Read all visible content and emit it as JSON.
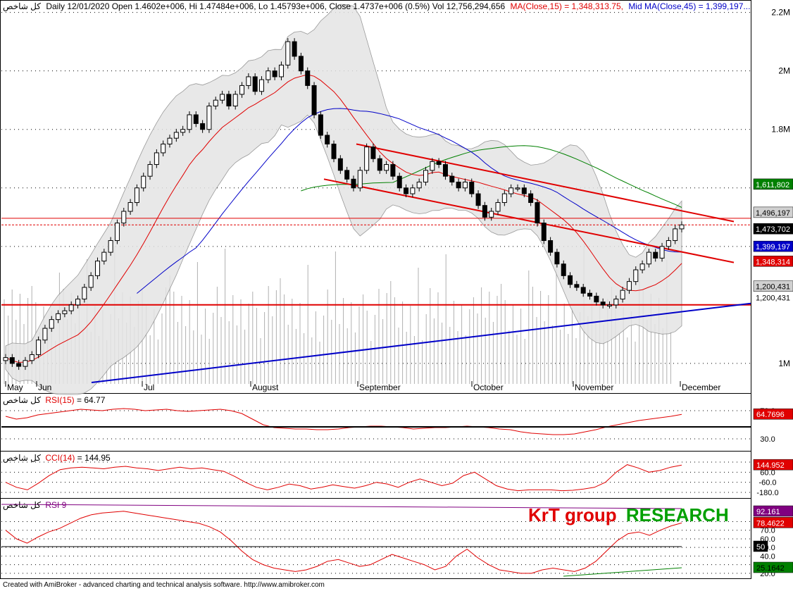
{
  "header": {
    "symbol": "كل شاخص",
    "title_line": "Daily 12/01/2020 Open 1.4602e+006, Hi 1.47484e+006, Lo 1.45793e+006, Close 1.4737e+006 (0.5%) Vol 12,756,294,656",
    "ma_label": "MA(Close,15) = 1,348,313.75,",
    "bb_label": "Mid MA(Close,45) = 1,399,197..."
  },
  "watermark": {
    "part1": "KrT group",
    "part2": "RESEARCH"
  },
  "footer": "Created with AmiBroker - advanced charting and technical analysis software. http://www.amibroker.com",
  "colors": {
    "ma15": "#e00000",
    "ma45": "#0000c8",
    "ma100": "#008000",
    "bb_fill": "#e4e4e4",
    "channel": "#e00000",
    "support": "#0000c8",
    "rsi_line": "#e00000",
    "rsi9_line": "#e00000"
  },
  "chart_data": [
    {
      "type": "candlestick",
      "title": "كل شاخص - Daily",
      "months": [
        "May",
        "Jun",
        "Jul",
        "August",
        "September",
        "October",
        "November",
        "December"
      ],
      "y_ticks": [
        "1M",
        "1.2M",
        "1.4M",
        "1.6M",
        "1.8M",
        "2M",
        "2.2M"
      ],
      "y_tick_labels": [
        "2.2M",
        "2M",
        "1.8M",
        "1M"
      ],
      "ylim": [
        930000,
        2240000
      ],
      "close": [
        1020000.0,
        1000000.0,
        990000.0,
        1010000.0,
        1030000.0,
        1080000.0,
        1120000.0,
        1150000.0,
        1170000.0,
        1180000.0,
        1200000.0,
        1220000.0,
        1260000.0,
        1300000.0,
        1350000.0,
        1380000.0,
        1420000.0,
        1480000.0,
        1520000.0,
        1550000.0,
        1600000.0,
        1640000.0,
        1680000.0,
        1720000.0,
        1750000.0,
        1770000.0,
        1790000.0,
        1800000.0,
        1850000.0,
        1820000.0,
        1800000.0,
        1880000.0,
        1900000.0,
        1920000.0,
        1880000.0,
        1920000.0,
        1950000.0,
        1980000.0,
        1930000.0,
        1970000.0,
        2000000.0,
        1980000.0,
        2020000.0,
        2100000.0,
        2050000.0,
        2000000.0,
        1950000.0,
        1850000.0,
        1780000.0,
        1750000.0,
        1700000.0,
        1660000.0,
        1630000.0,
        1600000.0,
        1660000.0,
        1740000.0,
        1700000.0,
        1660000.0,
        1680000.0,
        1640000.0,
        1600000.0,
        1580000.0,
        1600000.0,
        1620000.0,
        1660000.0,
        1690000.0,
        1680000.0,
        1640000.0,
        1620000.0,
        1600000.0,
        1620000.0,
        1580000.0,
        1540000.0,
        1500000.0,
        1520000.0,
        1550000.0,
        1580000.0,
        1600000.0,
        1600000.0,
        1580000.0,
        1550000.0,
        1480000.0,
        1420000.0,
        1380000.0,
        1340000.0,
        1300000.0,
        1270000.0,
        1260000.0,
        1240000.0,
        1230000.0,
        1210000.0,
        1200000.0,
        1200000.0,
        1220000.0,
        1250000.0,
        1280000.0,
        1320000.0,
        1340000.0,
        1380000.0,
        1360000.0,
        1400000.0,
        1420000.0,
        1460000.0,
        1473700.0
      ],
      "price_labels": [
        "1,611,802",
        "1,496,197",
        "1,473,702",
        "1,399,197",
        "1,348,314",
        "1,200,431",
        "1,200,431"
      ],
      "levels": [
        1611800.0,
        1496200.0,
        1473700.0,
        1399200.0,
        1348300.0,
        1200400.0
      ]
    },
    {
      "type": "line",
      "title": "كل شاخص - RSI(15) = 64.77",
      "name": "RSI(15)",
      "value_label": "64.77",
      "ticks": [
        "70.0",
        "30.0"
      ],
      "last_label": "64.7696",
      "ylim": [
        15,
        85
      ],
      "values": [
        62,
        58,
        60,
        64,
        66,
        68,
        70,
        72,
        71,
        70,
        72,
        73,
        72,
        70,
        71,
        72,
        70,
        69,
        70,
        71,
        72,
        70,
        66,
        58,
        50,
        46,
        45,
        44,
        44,
        43,
        43,
        44,
        46,
        47,
        48,
        48,
        47,
        46,
        44,
        45,
        46,
        46,
        47,
        48,
        47,
        46,
        44,
        43,
        40,
        38,
        37,
        36,
        36,
        37,
        40,
        43,
        47,
        50,
        53,
        56,
        58,
        60,
        62,
        64.77
      ]
    },
    {
      "type": "line",
      "title": "كل شاخص - CCI(14) = 144.95",
      "name": "CCI(14)",
      "value_label": "144.95",
      "ticks": [
        "180.0",
        "60.0",
        "-60.0",
        "-180.0"
      ],
      "last_label": "144.952",
      "ylim": [
        -230,
        230
      ],
      "values": [
        -60,
        -120,
        -150,
        -70,
        20,
        90,
        110,
        120,
        110,
        100,
        120,
        130,
        110,
        100,
        80,
        100,
        120,
        100,
        110,
        90,
        70,
        10,
        -60,
        -120,
        -150,
        -120,
        -80,
        -100,
        -140,
        -120,
        -90,
        -110,
        -130,
        -100,
        -60,
        -80,
        -120,
        -60,
        -20,
        -60,
        -100,
        -70,
        20,
        60,
        -20,
        -100,
        -140,
        -160,
        -150,
        -150,
        -150,
        -160,
        -155,
        -140,
        -120,
        -60,
        60,
        150,
        110,
        60,
        80,
        120,
        144.95
      ]
    },
    {
      "type": "line",
      "title": "كل شاخص - RSI 9",
      "name": "RSI 9",
      "ticks": [
        "80.0",
        "70.0",
        "60.0",
        "50.0",
        "40.0",
        "30.0",
        "20.0"
      ],
      "last_label": "78.4622",
      "box_labels": [
        "92.161",
        "50",
        "25.1642"
      ],
      "ylim": [
        15,
        100
      ],
      "values": [
        70,
        60,
        55,
        62,
        68,
        72,
        78,
        84,
        88,
        90,
        91,
        92,
        90,
        88,
        86,
        84,
        82,
        80,
        78,
        74,
        68,
        58,
        46,
        36,
        30,
        26,
        24,
        22,
        24,
        28,
        34,
        36,
        32,
        28,
        30,
        36,
        42,
        38,
        34,
        30,
        24,
        28,
        40,
        48,
        38,
        30,
        24,
        22,
        20,
        20,
        24,
        26,
        24,
        22,
        26,
        34,
        46,
        58,
        66,
        68,
        64,
        70,
        75,
        78.46
      ]
    }
  ]
}
